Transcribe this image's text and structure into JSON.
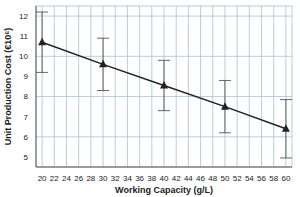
{
  "chart_data": {
    "type": "line",
    "x_label": "Working Capacity (g/L)",
    "y_label": "Unit Production Cost (€10⁶)",
    "x": [
      20,
      30,
      40,
      50,
      60
    ],
    "values": [
      10.7,
      9.6,
      8.55,
      7.5,
      6.4
    ],
    "error": [
      1.5,
      1.3,
      1.25,
      1.3,
      1.45
    ],
    "color": "#222222",
    "marker": "triangle",
    "xlim": [
      19,
      61
    ],
    "xticks": [
      20,
      22,
      24,
      26,
      28,
      30,
      32,
      34,
      36,
      38,
      40,
      42,
      44,
      46,
      48,
      50,
      52,
      54,
      56,
      58,
      60
    ],
    "ylim": [
      4.5,
      12.5
    ],
    "yticks": [
      5,
      6,
      7,
      8,
      9,
      10,
      11,
      12
    ],
    "grid": true
  }
}
